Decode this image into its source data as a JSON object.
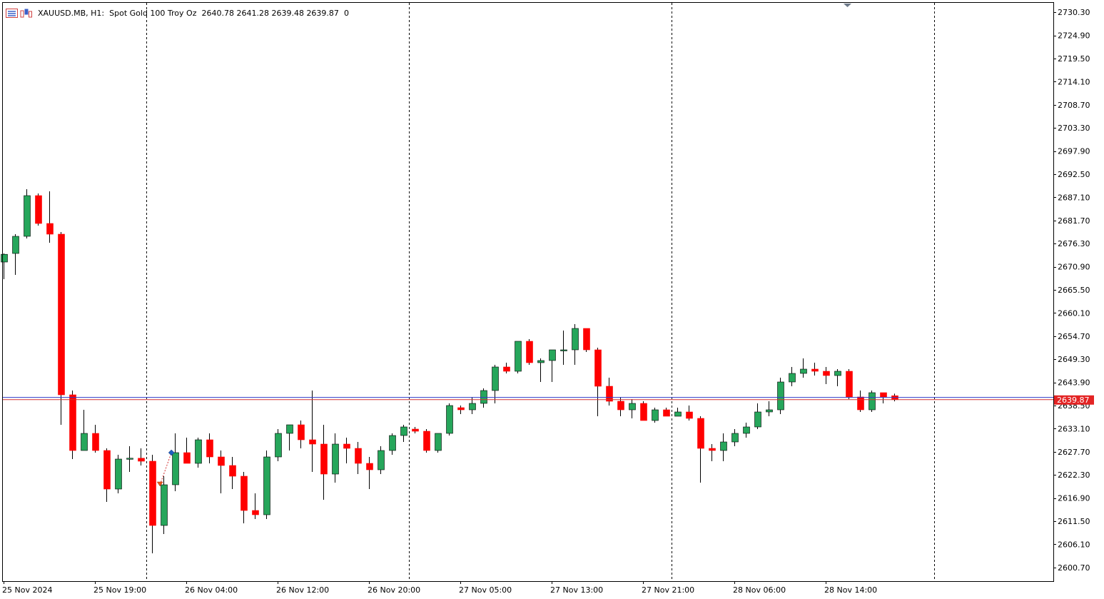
{
  "header": {
    "symbol": "XAUUSD.MB",
    "timeframe": "H1:",
    "description": "Spot Gold 100 Troy Oz",
    "ohlc": "2640.78 2641.28 2639.48 2639.87",
    "volume": "0"
  },
  "colors": {
    "bull": "#26a65b",
    "bear": "#ff0000",
    "bid_line": "#d33131",
    "ask_line": "#2e3cc8",
    "grid": "#000000",
    "price_tag": "#e32424"
  },
  "chart_data": {
    "type": "candlestick",
    "ylim": [
      2597.5,
      2732.5
    ],
    "y_ticks": [
      "2730.30",
      "2724.90",
      "2719.50",
      "2714.10",
      "2708.70",
      "2703.30",
      "2697.90",
      "2692.50",
      "2687.10",
      "2681.70",
      "2676.30",
      "2670.90",
      "2665.50",
      "2660.10",
      "2654.70",
      "2649.30",
      "2643.90",
      "2638.50",
      "2633.10",
      "2627.70",
      "2622.30",
      "2616.90",
      "2611.50",
      "2606.10",
      "2600.70"
    ],
    "x_ticks": [
      {
        "label": "25 Nov 2024",
        "index": 0
      },
      {
        "label": "25 Nov 19:00",
        "index": 8
      },
      {
        "label": "26 Nov 04:00",
        "index": 16
      },
      {
        "label": "26 Nov 12:00",
        "index": 24
      },
      {
        "label": "26 Nov 20:00",
        "index": 32
      },
      {
        "label": "27 Nov 05:00",
        "index": 40
      },
      {
        "label": "27 Nov 13:00",
        "index": 48
      },
      {
        "label": "27 Nov 21:00",
        "index": 56
      },
      {
        "label": "28 Nov 06:00",
        "index": 64
      },
      {
        "label": "28 Nov 14:00",
        "index": 72
      }
    ],
    "session_separators": [
      12.5,
      35.5,
      58.5,
      81.5
    ],
    "bid": 2639.87,
    "ask": 2640.4,
    "last_price_label": "2639.87",
    "candles": [
      [
        2672.0,
        2674.0,
        2668.0,
        2673.8
      ],
      [
        2674.0,
        2678.5,
        2669.0,
        2678.0
      ],
      [
        2678.0,
        2689.0,
        2677.5,
        2687.5
      ],
      [
        2687.5,
        2688.0,
        2680.5,
        2681.0
      ],
      [
        2681.0,
        2688.5,
        2676.5,
        2678.5
      ],
      [
        2678.5,
        2679.0,
        2634.0,
        2641.0
      ],
      [
        2641.0,
        2642.0,
        2626.0,
        2628.0
      ],
      [
        2628.0,
        2637.5,
        2628.0,
        2632.0
      ],
      [
        2632.0,
        2634.0,
        2627.5,
        2628.0
      ],
      [
        2628.0,
        2628.5,
        2616.0,
        2619.0
      ],
      [
        2619.0,
        2627.0,
        2618.0,
        2626.0
      ],
      [
        2626.0,
        2629.0,
        2623.0,
        2626.2
      ],
      [
        2626.2,
        2628.5,
        2624.5,
        2625.5
      ],
      [
        2625.5,
        2627.0,
        2604.0,
        2610.5
      ],
      [
        2610.5,
        2622.0,
        2608.5,
        2620.0
      ],
      [
        2620.0,
        2632.0,
        2618.5,
        2627.5
      ],
      [
        2627.5,
        2631.0,
        2625.0,
        2625.0
      ],
      [
        2625.0,
        2631.0,
        2624.0,
        2630.5
      ],
      [
        2630.5,
        2632.0,
        2625.0,
        2626.5
      ],
      [
        2626.5,
        2628.0,
        2618.0,
        2624.5
      ],
      [
        2624.5,
        2626.5,
        2619.0,
        2622.0
      ],
      [
        2622.0,
        2623.0,
        2611.0,
        2614.0
      ],
      [
        2614.0,
        2618.0,
        2612.0,
        2613.0
      ],
      [
        2613.0,
        2628.0,
        2612.0,
        2626.5
      ],
      [
        2626.5,
        2633.0,
        2625.5,
        2632.0
      ],
      [
        2632.0,
        2634.0,
        2628.0,
        2634.0
      ],
      [
        2634.0,
        2635.0,
        2628.5,
        2630.5
      ],
      [
        2630.5,
        2642.0,
        2623.0,
        2629.5
      ],
      [
        2629.5,
        2634.0,
        2616.5,
        2622.5
      ],
      [
        2622.5,
        2632.0,
        2620.5,
        2629.5
      ],
      [
        2629.5,
        2631.0,
        2625.0,
        2628.5
      ],
      [
        2628.5,
        2630.0,
        2622.5,
        2625.0
      ],
      [
        2625.0,
        2626.5,
        2619.0,
        2623.5
      ],
      [
        2623.5,
        2629.0,
        2622.5,
        2628.0
      ],
      [
        2628.0,
        2632.0,
        2627.0,
        2631.5
      ],
      [
        2631.5,
        2634.0,
        2630.0,
        2633.5
      ],
      [
        2633.0,
        2633.5,
        2632.0,
        2632.5
      ],
      [
        2632.5,
        2633.0,
        2627.5,
        2628.0
      ],
      [
        2628.0,
        2632.0,
        2627.5,
        2632.0
      ],
      [
        2632.0,
        2639.0,
        2631.5,
        2638.5
      ],
      [
        2638.0,
        2638.5,
        2636.5,
        2637.5
      ],
      [
        2637.5,
        2640.5,
        2636.5,
        2639.0
      ],
      [
        2639.0,
        2642.5,
        2638.0,
        2642.0
      ],
      [
        2642.0,
        2648.0,
        2639.0,
        2647.5
      ],
      [
        2647.5,
        2648.5,
        2646.0,
        2646.5
      ],
      [
        2646.5,
        2653.5,
        2646.0,
        2653.5
      ],
      [
        2653.5,
        2654.0,
        2648.0,
        2648.5
      ],
      [
        2648.5,
        2649.5,
        2644.0,
        2649.0
      ],
      [
        2649.0,
        2651.0,
        2644.0,
        2651.5
      ],
      [
        2651.5,
        2656.0,
        2648.0,
        2651.5
      ],
      [
        2651.5,
        2657.5,
        2648.0,
        2656.5
      ],
      [
        2656.5,
        2656.5,
        2651.0,
        2651.5
      ],
      [
        2651.5,
        2652.0,
        2636.0,
        2643.0
      ],
      [
        2643.0,
        2645.0,
        2638.5,
        2639.5
      ],
      [
        2639.5,
        2640.5,
        2636.0,
        2637.5
      ],
      [
        2637.5,
        2640.0,
        2635.5,
        2639.0
      ],
      [
        2639.0,
        2639.5,
        2635.0,
        2635.0
      ],
      [
        2635.0,
        2638.0,
        2634.5,
        2637.5
      ],
      [
        2637.5,
        2638.0,
        2636.0,
        2636.0
      ],
      [
        2636.0,
        2638.0,
        2636.0,
        2637.0
      ],
      [
        2637.0,
        2638.5,
        2635.0,
        2635.5
      ],
      [
        2635.5,
        2636.0,
        2620.5,
        2628.5
      ],
      [
        2628.5,
        2629.5,
        2625.5,
        2628.0
      ],
      [
        2628.0,
        2632.0,
        2625.5,
        2630.0
      ],
      [
        2630.0,
        2633.0,
        2629.0,
        2632.0
      ],
      [
        2632.0,
        2634.5,
        2631.0,
        2633.5
      ],
      [
        2633.5,
        2639.0,
        2633.0,
        2637.0
      ],
      [
        2637.0,
        2639.5,
        2636.0,
        2637.5
      ],
      [
        2637.5,
        2645.0,
        2636.5,
        2644.0
      ],
      [
        2644.0,
        2647.5,
        2643.0,
        2646.0
      ],
      [
        2646.0,
        2649.5,
        2645.0,
        2647.0
      ],
      [
        2647.0,
        2648.5,
        2645.5,
        2646.5
      ],
      [
        2646.5,
        2647.5,
        2643.5,
        2645.5
      ],
      [
        2645.5,
        2647.0,
        2643.0,
        2646.5
      ],
      [
        2646.5,
        2647.0,
        2640.0,
        2640.5
      ],
      [
        2640.5,
        2642.0,
        2637.0,
        2637.5
      ],
      [
        2637.5,
        2642.0,
        2637.0,
        2641.5
      ],
      [
        2641.5,
        2641.5,
        2639.0,
        2640.5
      ],
      [
        2640.78,
        2641.28,
        2639.48,
        2639.87
      ]
    ],
    "trade_markers": [
      {
        "index": 13.7,
        "price": 2620.0,
        "type": "sell"
      },
      {
        "index": 14.7,
        "price": 2627.5,
        "type": "buy"
      }
    ]
  }
}
